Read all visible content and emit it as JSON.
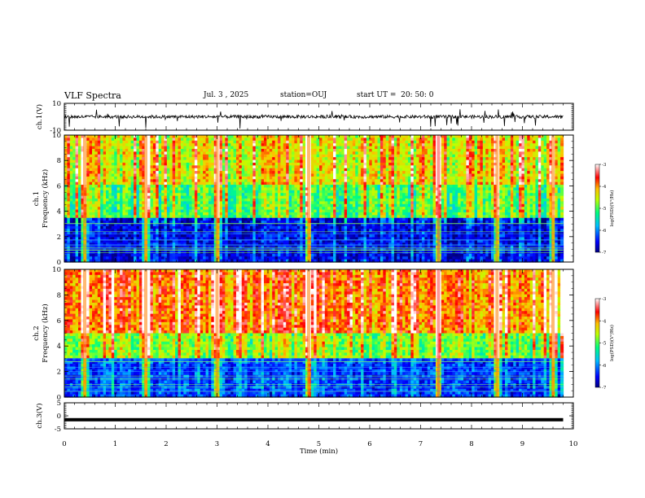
{
  "header": {
    "title": "VLF Spectra",
    "date": "Jul. 3 , 2025",
    "station": "station=OUJ",
    "start_ut": "start UT =  20: 50: 0"
  },
  "colors": {
    "colormap": [
      "#00007f",
      "#0000ff",
      "#0080ff",
      "#00ffff",
      "#80ff80",
      "#ffff00",
      "#ff8000",
      "#ff0000",
      "#ffffff"
    ]
  },
  "chart_data": [
    {
      "type": "line",
      "panel": "ch1-waveform",
      "ylabel": "ch.1(V)",
      "ylim": [
        -10,
        10
      ],
      "yticks": [
        "10",
        "-10"
      ],
      "description_level": 0
    },
    {
      "type": "heatmap",
      "panel": "ch1-spectrogram",
      "ylabel": "ch.1\nFrequency (kHz)",
      "ylabel_line1": "ch.1",
      "ylabel_line2": "Frequency (kHz)",
      "ylim": [
        0,
        10
      ],
      "yticks": [
        "0",
        "2",
        "4",
        "6",
        "8",
        "10"
      ],
      "colorbar": {
        "label": "log(PSD)(V²/Hz)",
        "range": [
          -7,
          -3
        ],
        "ticks": [
          "-3",
          "-4",
          "-5",
          "-6",
          "-7"
        ]
      },
      "bands": [
        {
          "from": 0,
          "to": 3.5,
          "level": -6.6
        },
        {
          "from": 3.5,
          "to": 6,
          "level": -5.0
        },
        {
          "from": 6,
          "to": 10,
          "level": -4.4
        }
      ],
      "strong_events_min": [
        0.4,
        1.6,
        3.0,
        4.8,
        7.35,
        8.5,
        9.6
      ]
    },
    {
      "type": "heatmap",
      "panel": "ch2-spectrogram",
      "ylabel": "ch.2\nFrequency (kHz)",
      "ylabel_line1": "ch.2",
      "ylabel_line2": "Frequency (kHz)",
      "ylim": [
        0,
        10
      ],
      "yticks": [
        "0",
        "2",
        "4",
        "6",
        "8",
        "10"
      ],
      "colorbar": {
        "label": "log(PSD)(V²/Hz)",
        "range": [
          -7,
          -3
        ],
        "ticks": [
          "-3",
          "-4",
          "-5",
          "-6",
          "-7"
        ]
      },
      "bands": [
        {
          "from": 0,
          "to": 3,
          "level": -6.3
        },
        {
          "from": 3,
          "to": 5,
          "level": -4.8
        },
        {
          "from": 5,
          "to": 10,
          "level": -3.9
        }
      ],
      "strong_events_min": [
        0.4,
        1.6,
        3.0,
        4.8,
        7.35,
        8.5,
        9.6
      ]
    },
    {
      "type": "line",
      "panel": "ch3-waveform",
      "ylabel": "ch.3(V)",
      "ylim": [
        -5,
        5
      ],
      "yticks": [
        "5",
        "0",
        "-5"
      ],
      "constant_value": -1.5
    }
  ],
  "xaxis": {
    "label": "Time (min)",
    "range": [
      0,
      10
    ],
    "data_end": 9.8,
    "ticks": [
      "0",
      "1",
      "2",
      "3",
      "4",
      "5",
      "6",
      "7",
      "8",
      "9",
      "10"
    ]
  }
}
